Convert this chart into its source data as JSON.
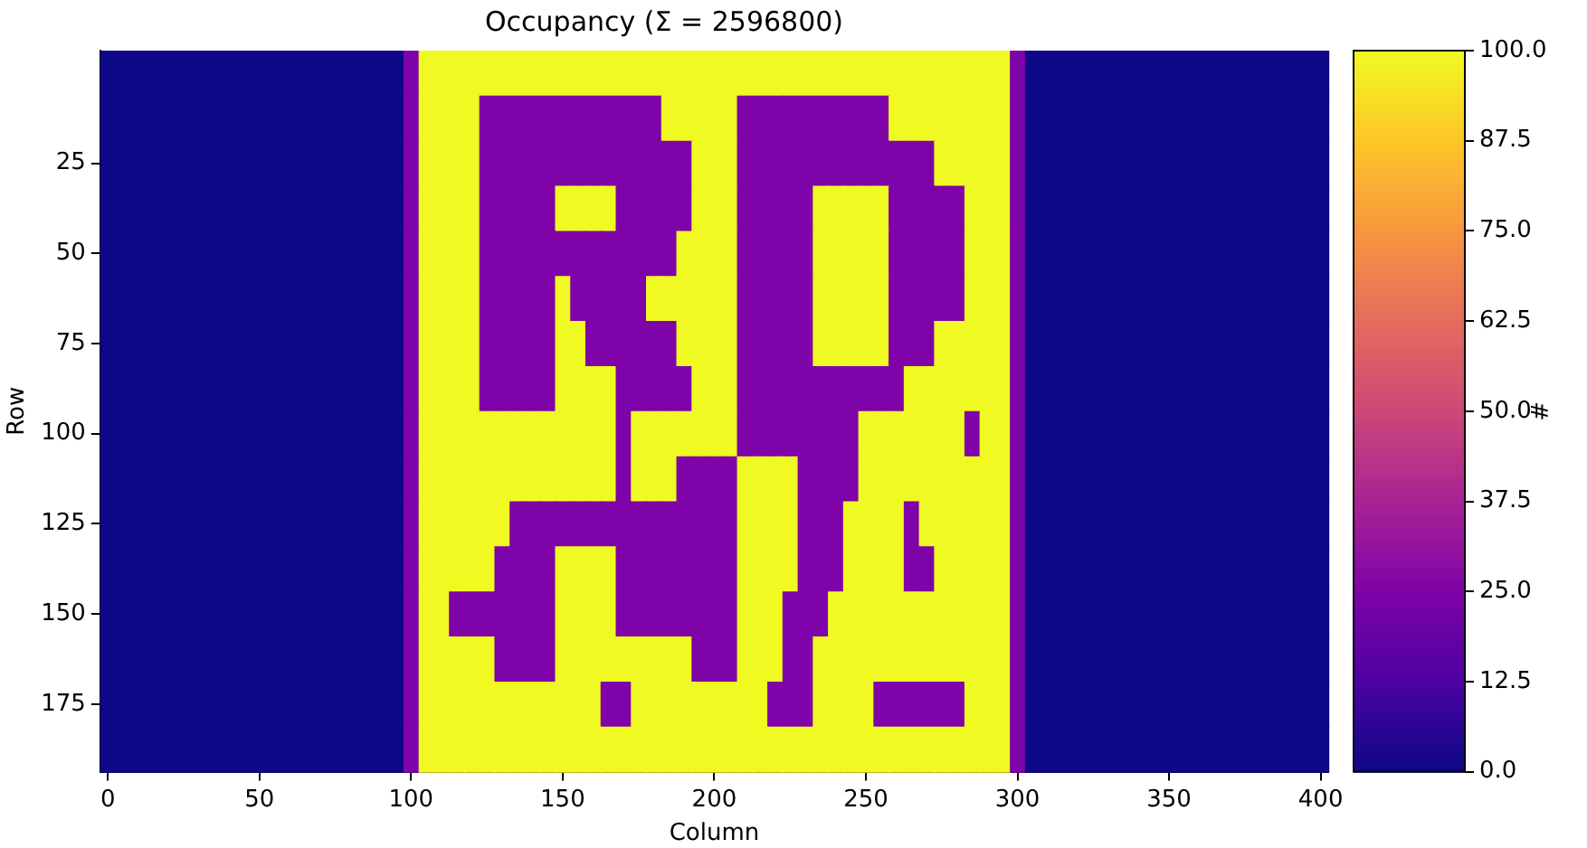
{
  "chart_data": {
    "type": "heatmap",
    "title": "Occupancy (Σ = 2596800)",
    "xlabel": "Column",
    "ylabel": "Row",
    "clabel": "#",
    "categories": [
      "0",
      null,
      null,
      null,
      null,
      null,
      null,
      null,
      null,
      null,
      "50",
      null,
      null,
      null,
      null,
      null,
      null,
      null,
      null,
      null,
      "100",
      null,
      null,
      null,
      null,
      null,
      null,
      null,
      null,
      null,
      "150",
      null,
      null,
      null,
      null,
      null,
      null,
      null,
      null,
      null,
      "200",
      null,
      null,
      null,
      null,
      null,
      null,
      null,
      null,
      null,
      "250",
      null,
      null,
      null,
      null,
      null,
      null,
      null,
      null,
      null,
      "300",
      null,
      null,
      null,
      null,
      null,
      null,
      null,
      null,
      null,
      "350",
      null,
      null,
      null,
      null,
      null,
      null,
      null,
      null,
      null,
      "400"
    ],
    "y_categories": [
      null,
      null,
      "25",
      null,
      "50",
      null,
      "75",
      null,
      "100",
      null,
      "125",
      null,
      "150",
      null,
      "175",
      null
    ],
    "clim": [
      0,
      100
    ],
    "cticks": [
      {
        "value": 0,
        "label": "0.0"
      },
      {
        "value": 12.5,
        "label": "12.5"
      },
      {
        "value": 25,
        "label": "25.0"
      },
      {
        "value": 37.5,
        "label": "37.5"
      },
      {
        "value": 50,
        "label": "50.0"
      },
      {
        "value": 62.5,
        "label": "62.5"
      },
      {
        "value": 75,
        "label": "75.0"
      },
      {
        "value": 87.5,
        "label": "87.5"
      },
      {
        "value": 100,
        "label": "100.0"
      }
    ],
    "cells": [
      [
        0,
        0,
        0,
        0,
        0,
        0,
        0,
        0,
        0,
        0,
        0,
        0,
        0,
        0,
        0,
        0,
        0,
        0,
        0,
        0,
        25,
        100,
        100,
        100,
        100,
        100,
        100,
        100,
        100,
        100,
        100,
        100,
        100,
        100,
        100,
        100,
        100,
        100,
        100,
        100,
        100,
        100,
        100,
        100,
        100,
        100,
        100,
        100,
        100,
        100,
        100,
        100,
        100,
        100,
        100,
        100,
        100,
        100,
        100,
        100,
        25,
        0,
        0,
        0,
        0,
        0,
        0,
        0,
        0,
        0,
        0,
        0,
        0,
        0,
        0,
        0,
        0,
        0,
        0,
        0,
        0
      ],
      [
        0,
        0,
        0,
        0,
        0,
        0,
        0,
        0,
        0,
        0,
        0,
        0,
        0,
        0,
        0,
        0,
        0,
        0,
        0,
        0,
        25,
        100,
        100,
        100,
        100,
        25,
        25,
        25,
        25,
        25,
        25,
        25,
        25,
        25,
        25,
        25,
        25,
        100,
        100,
        100,
        100,
        100,
        25,
        25,
        25,
        25,
        25,
        25,
        25,
        25,
        25,
        25,
        100,
        100,
        100,
        100,
        100,
        100,
        100,
        100,
        25,
        0,
        0,
        0,
        0,
        0,
        0,
        0,
        0,
        0,
        0,
        0,
        0,
        0,
        0,
        0,
        0,
        0,
        0,
        0,
        0
      ],
      [
        0,
        0,
        0,
        0,
        0,
        0,
        0,
        0,
        0,
        0,
        0,
        0,
        0,
        0,
        0,
        0,
        0,
        0,
        0,
        0,
        25,
        100,
        100,
        100,
        100,
        25,
        25,
        25,
        25,
        25,
        25,
        25,
        25,
        25,
        25,
        25,
        25,
        25,
        25,
        100,
        100,
        100,
        25,
        25,
        25,
        25,
        25,
        25,
        25,
        25,
        25,
        25,
        25,
        25,
        25,
        100,
        100,
        100,
        100,
        100,
        25,
        0,
        0,
        0,
        0,
        0,
        0,
        0,
        0,
        0,
        0,
        0,
        0,
        0,
        0,
        0,
        0,
        0,
        0,
        0,
        0
      ],
      [
        0,
        0,
        0,
        0,
        0,
        0,
        0,
        0,
        0,
        0,
        0,
        0,
        0,
        0,
        0,
        0,
        0,
        0,
        0,
        0,
        25,
        100,
        100,
        100,
        100,
        25,
        25,
        25,
        25,
        25,
        100,
        100,
        100,
        100,
        25,
        25,
        25,
        25,
        25,
        100,
        100,
        100,
        25,
        25,
        25,
        25,
        25,
        100,
        100,
        100,
        100,
        100,
        25,
        25,
        25,
        25,
        25,
        100,
        100,
        100,
        25,
        0,
        0,
        0,
        0,
        0,
        0,
        0,
        0,
        0,
        0,
        0,
        0,
        0,
        0,
        0,
        0,
        0,
        0,
        0,
        0
      ],
      [
        0,
        0,
        0,
        0,
        0,
        0,
        0,
        0,
        0,
        0,
        0,
        0,
        0,
        0,
        0,
        0,
        0,
        0,
        0,
        0,
        25,
        100,
        100,
        100,
        100,
        25,
        25,
        25,
        25,
        25,
        25,
        25,
        25,
        25,
        25,
        25,
        25,
        25,
        100,
        100,
        100,
        100,
        25,
        25,
        25,
        25,
        25,
        100,
        100,
        100,
        100,
        100,
        25,
        25,
        25,
        25,
        25,
        100,
        100,
        100,
        25,
        0,
        0,
        0,
        0,
        0,
        0,
        0,
        0,
        0,
        0,
        0,
        0,
        0,
        0,
        0,
        0,
        0,
        0,
        0,
        0
      ],
      [
        0,
        0,
        0,
        0,
        0,
        0,
        0,
        0,
        0,
        0,
        0,
        0,
        0,
        0,
        0,
        0,
        0,
        0,
        0,
        0,
        25,
        100,
        100,
        100,
        100,
        25,
        25,
        25,
        25,
        25,
        100,
        25,
        25,
        25,
        25,
        25,
        100,
        100,
        100,
        100,
        100,
        100,
        25,
        25,
        25,
        25,
        25,
        100,
        100,
        100,
        100,
        100,
        25,
        25,
        25,
        25,
        25,
        100,
        100,
        100,
        25,
        0,
        0,
        0,
        0,
        0,
        0,
        0,
        0,
        0,
        0,
        0,
        0,
        0,
        0,
        0,
        0,
        0,
        0,
        0,
        0
      ],
      [
        0,
        0,
        0,
        0,
        0,
        0,
        0,
        0,
        0,
        0,
        0,
        0,
        0,
        0,
        0,
        0,
        0,
        0,
        0,
        0,
        25,
        100,
        100,
        100,
        100,
        25,
        25,
        25,
        25,
        25,
        100,
        100,
        25,
        25,
        25,
        25,
        25,
        25,
        100,
        100,
        100,
        100,
        25,
        25,
        25,
        25,
        25,
        100,
        100,
        100,
        100,
        100,
        25,
        25,
        25,
        100,
        100,
        100,
        100,
        100,
        25,
        0,
        0,
        0,
        0,
        0,
        0,
        0,
        0,
        0,
        0,
        0,
        0,
        0,
        0,
        0,
        0,
        0,
        0,
        0,
        0
      ],
      [
        0,
        0,
        0,
        0,
        0,
        0,
        0,
        0,
        0,
        0,
        0,
        0,
        0,
        0,
        0,
        0,
        0,
        0,
        0,
        0,
        25,
        100,
        100,
        100,
        100,
        25,
        25,
        25,
        25,
        25,
        100,
        100,
        100,
        100,
        25,
        25,
        25,
        25,
        25,
        100,
        100,
        100,
        25,
        25,
        25,
        25,
        25,
        25,
        25,
        25,
        25,
        25,
        25,
        100,
        100,
        100,
        100,
        100,
        100,
        100,
        25,
        0,
        0,
        0,
        0,
        0,
        0,
        0,
        0,
        0,
        0,
        0,
        0,
        0,
        0,
        0,
        0,
        0,
        0,
        0,
        0
      ],
      [
        0,
        0,
        0,
        0,
        0,
        0,
        0,
        0,
        0,
        0,
        0,
        0,
        0,
        0,
        0,
        0,
        0,
        0,
        0,
        0,
        25,
        100,
        100,
        100,
        100,
        100,
        100,
        100,
        100,
        100,
        100,
        100,
        100,
        100,
        25,
        100,
        100,
        100,
        100,
        100,
        100,
        100,
        25,
        25,
        25,
        25,
        25,
        25,
        25,
        25,
        100,
        100,
        100,
        100,
        100,
        100,
        100,
        25,
        100,
        100,
        25,
        0,
        0,
        0,
        0,
        0,
        0,
        0,
        0,
        0,
        0,
        0,
        0,
        0,
        0,
        0,
        0,
        0,
        0,
        0,
        0
      ],
      [
        0,
        0,
        0,
        0,
        0,
        0,
        0,
        0,
        0,
        0,
        0,
        0,
        0,
        0,
        0,
        0,
        0,
        0,
        0,
        0,
        25,
        100,
        100,
        100,
        100,
        100,
        100,
        100,
        100,
        100,
        100,
        100,
        100,
        100,
        25,
        100,
        100,
        100,
        25,
        25,
        25,
        25,
        100,
        100,
        100,
        100,
        25,
        25,
        25,
        25,
        100,
        100,
        100,
        100,
        100,
        100,
        100,
        100,
        100,
        100,
        25,
        0,
        0,
        0,
        0,
        0,
        0,
        0,
        0,
        0,
        0,
        0,
        0,
        0,
        0,
        0,
        0,
        0,
        0,
        0,
        0
      ],
      [
        0,
        0,
        0,
        0,
        0,
        0,
        0,
        0,
        0,
        0,
        0,
        0,
        0,
        0,
        0,
        0,
        0,
        0,
        0,
        0,
        25,
        100,
        100,
        100,
        100,
        100,
        100,
        25,
        25,
        25,
        25,
        25,
        25,
        25,
        25,
        25,
        25,
        25,
        25,
        25,
        25,
        25,
        100,
        100,
        100,
        100,
        25,
        25,
        25,
        100,
        100,
        100,
        100,
        25,
        100,
        100,
        100,
        100,
        100,
        100,
        25,
        0,
        0,
        0,
        0,
        0,
        0,
        0,
        0,
        0,
        0,
        0,
        0,
        0,
        0,
        0,
        0,
        0,
        0,
        0,
        0
      ],
      [
        0,
        0,
        0,
        0,
        0,
        0,
        0,
        0,
        0,
        0,
        0,
        0,
        0,
        0,
        0,
        0,
        0,
        0,
        0,
        0,
        25,
        100,
        100,
        100,
        100,
        100,
        25,
        25,
        25,
        25,
        100,
        100,
        100,
        100,
        25,
        25,
        25,
        25,
        25,
        25,
        25,
        25,
        100,
        100,
        100,
        100,
        25,
        25,
        25,
        100,
        100,
        100,
        100,
        25,
        25,
        100,
        100,
        100,
        100,
        100,
        25,
        0,
        0,
        0,
        0,
        0,
        0,
        0,
        0,
        0,
        0,
        0,
        0,
        0,
        0,
        0,
        0,
        0,
        0,
        0,
        0
      ],
      [
        0,
        0,
        0,
        0,
        0,
        0,
        0,
        0,
        0,
        0,
        0,
        0,
        0,
        0,
        0,
        0,
        0,
        0,
        0,
        0,
        25,
        100,
        100,
        25,
        25,
        25,
        25,
        25,
        25,
        25,
        100,
        100,
        100,
        100,
        25,
        25,
        25,
        25,
        25,
        25,
        25,
        25,
        100,
        100,
        100,
        25,
        25,
        25,
        100,
        100,
        100,
        100,
        100,
        100,
        100,
        100,
        100,
        100,
        100,
        100,
        25,
        0,
        0,
        0,
        0,
        0,
        0,
        0,
        0,
        0,
        0,
        0,
        0,
        0,
        0,
        0,
        0,
        0,
        0,
        0,
        0
      ],
      [
        0,
        0,
        0,
        0,
        0,
        0,
        0,
        0,
        0,
        0,
        0,
        0,
        0,
        0,
        0,
        0,
        0,
        0,
        0,
        0,
        25,
        100,
        100,
        100,
        100,
        100,
        25,
        25,
        25,
        25,
        100,
        100,
        100,
        100,
        100,
        100,
        100,
        100,
        100,
        25,
        25,
        25,
        100,
        100,
        100,
        25,
        25,
        100,
        100,
        100,
        100,
        100,
        100,
        100,
        100,
        100,
        100,
        100,
        100,
        100,
        25,
        0,
        0,
        0,
        0,
        0,
        0,
        0,
        0,
        0,
        0,
        0,
        0,
        0,
        0,
        0,
        0,
        0,
        0,
        0,
        0
      ],
      [
        0,
        0,
        0,
        0,
        0,
        0,
        0,
        0,
        0,
        0,
        0,
        0,
        0,
        0,
        0,
        0,
        0,
        0,
        0,
        0,
        25,
        100,
        100,
        100,
        100,
        100,
        100,
        100,
        100,
        100,
        100,
        100,
        100,
        25,
        25,
        100,
        100,
        100,
        100,
        100,
        100,
        100,
        100,
        100,
        25,
        25,
        25,
        100,
        100,
        100,
        100,
        25,
        25,
        25,
        25,
        25,
        25,
        100,
        100,
        100,
        25,
        0,
        0,
        0,
        0,
        0,
        0,
        0,
        0,
        0,
        0,
        0,
        0,
        0,
        0,
        0,
        0,
        0,
        0,
        0,
        0
      ],
      [
        0,
        0,
        0,
        0,
        0,
        0,
        0,
        0,
        0,
        0,
        0,
        0,
        0,
        0,
        0,
        0,
        0,
        0,
        0,
        0,
        25,
        100,
        100,
        100,
        100,
        100,
        100,
        100,
        100,
        100,
        100,
        100,
        100,
        100,
        100,
        100,
        100,
        100,
        100,
        100,
        100,
        100,
        100,
        100,
        100,
        100,
        100,
        100,
        100,
        100,
        100,
        100,
        100,
        100,
        100,
        100,
        100,
        100,
        100,
        100,
        25,
        0,
        0,
        0,
        0,
        0,
        0,
        0,
        0,
        0,
        0,
        0,
        0,
        0,
        0,
        0,
        0,
        0,
        0,
        0,
        0
      ]
    ]
  }
}
